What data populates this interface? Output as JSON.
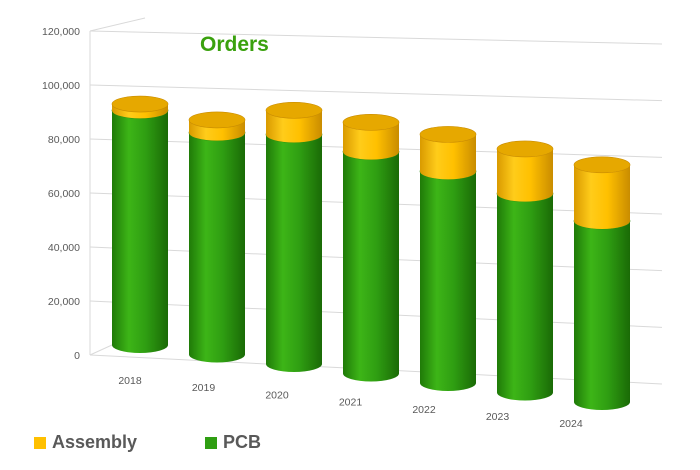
{
  "chart_data": {
    "type": "bar",
    "subtype": "3d-stacked-cylinder",
    "title": "Orders",
    "categories": [
      "2018",
      "2019",
      "2020",
      "2021",
      "2022",
      "2023",
      "2024"
    ],
    "series": [
      {
        "name": "PCB",
        "values": [
          92000,
          87000,
          90000,
          87000,
          83000,
          78000,
          71000
        ],
        "color": "#2f9e12"
      },
      {
        "name": "Assembly",
        "values": [
          2500,
          5000,
          9500,
          11500,
          14500,
          17500,
          22000
        ],
        "color": "#ffc000"
      }
    ],
    "ylim": [
      0,
      120000
    ],
    "yticks": [
      "0",
      "20,000",
      "40,000",
      "60,000",
      "80,000",
      "100,000",
      "120,000"
    ],
    "grid": true,
    "legend_position": "bottom-left",
    "legend": [
      {
        "name": "Assembly",
        "color": "#ffc000"
      },
      {
        "name": "PCB",
        "color": "#2f9e12"
      }
    ]
  }
}
